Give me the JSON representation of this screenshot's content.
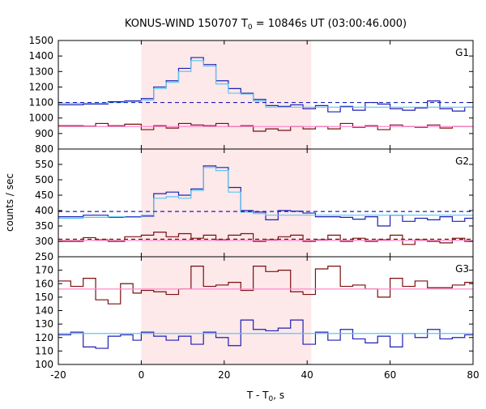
{
  "chart_data": {
    "type": "line",
    "title": "KONUS-WIND 150707 T",
    "title_sub": "0",
    "title_rest": " = 10846s UT (03:00:46.000)",
    "xlabel_main": "T - T",
    "xlabel_sub": "0",
    "xlabel_unit": ", s",
    "ylabel": "counts / sec",
    "xlim": [
      -20,
      80
    ],
    "x_ticks": [
      -20,
      0,
      20,
      40,
      60,
      80
    ],
    "x_tick_labels": [
      "-20",
      "0",
      "20",
      "40",
      "60",
      "80"
    ],
    "highlight_interval": [
      0,
      41
    ],
    "panels": [
      {
        "label": "G1",
        "ylim": [
          800,
          1500
        ],
        "y_ticks": [
          800,
          900,
          1000,
          1100,
          1200,
          1300,
          1400,
          1500
        ],
        "y_tick_labels": [
          "800",
          "900",
          "1000",
          "1100",
          "1200",
          "1300",
          "1400",
          "1500"
        ],
        "series": [
          {
            "color": "#1f1fb4",
            "style": "step",
            "x": [
              -20,
              -14,
              -8,
              -4,
              0,
              3,
              6,
              9,
              12,
              15,
              18,
              21,
              24,
              27,
              30,
              33,
              36,
              39,
              42,
              45,
              48,
              51,
              54,
              57,
              60,
              63,
              66,
              69,
              72,
              75,
              78,
              80
            ],
            "y": [
              1085,
              1090,
              1105,
              1110,
              1125,
              1200,
              1240,
              1320,
              1390,
              1345,
              1240,
              1190,
              1160,
              1120,
              1080,
              1075,
              1085,
              1060,
              1080,
              1040,
              1075,
              1050,
              1100,
              1090,
              1060,
              1050,
              1065,
              1110,
              1060,
              1045,
              1070,
              1070
            ]
          },
          {
            "color": "#5ac8f0",
            "style": "step",
            "x": [
              -20,
              -14,
              -8,
              -4,
              0,
              3,
              6,
              9,
              12,
              15,
              18,
              21,
              24,
              27,
              30,
              80
            ],
            "y": [
              1095,
              1095,
              1100,
              1105,
              1115,
              1190,
              1230,
              1300,
              1370,
              1335,
              1220,
              1160,
              1155,
              1110,
              1070,
              1070
            ]
          },
          {
            "color": "#7a0f0f",
            "style": "step",
            "x": [
              -20,
              -14,
              -11,
              -8,
              -4,
              0,
              3,
              6,
              9,
              12,
              15,
              18,
              21,
              24,
              27,
              30,
              33,
              36,
              39,
              42,
              45,
              48,
              51,
              54,
              57,
              60,
              63,
              66,
              69,
              72,
              75,
              78,
              80
            ],
            "y": [
              950,
              948,
              965,
              950,
              960,
              925,
              950,
              935,
              965,
              955,
              950,
              965,
              945,
              950,
              915,
              930,
              920,
              945,
              930,
              945,
              930,
              965,
              940,
              950,
              925,
              955,
              945,
              940,
              955,
              935,
              945,
              945,
              945
            ]
          },
          {
            "color": "#ff88cc",
            "style": "step",
            "x": [
              -20,
              80
            ],
            "y": [
              945,
              945
            ]
          },
          {
            "color": "#1f1fb4",
            "style": "dashed",
            "x": [
              -20,
              80
            ],
            "y": [
              1100,
              1100
            ]
          }
        ]
      },
      {
        "label": "G2",
        "ylim": [
          250,
          600
        ],
        "y_ticks": [
          250,
          300,
          350,
          400,
          450,
          500,
          550
        ],
        "y_tick_labels": [
          "250",
          "300",
          "350",
          "400",
          "450",
          "500",
          "550"
        ],
        "series": [
          {
            "color": "#1f1fb4",
            "style": "step",
            "x": [
              -20,
              -14,
              -8,
              -4,
              0,
              3,
              6,
              9,
              12,
              15,
              18,
              21,
              24,
              27,
              30,
              33,
              36,
              39,
              42,
              45,
              48,
              51,
              54,
              57,
              60,
              63,
              66,
              69,
              72,
              75,
              78,
              80
            ],
            "y": [
              380,
              385,
              378,
              380,
              382,
              455,
              460,
              450,
              470,
              545,
              540,
              475,
              400,
              395,
              370,
              400,
              398,
              392,
              380,
              380,
              378,
              372,
              380,
              350,
              385,
              365,
              375,
              370,
              380,
              365,
              375,
              375
            ]
          },
          {
            "color": "#5ac8f0",
            "style": "step",
            "x": [
              -20,
              -14,
              -8,
              -4,
              0,
              3,
              6,
              9,
              12,
              15,
              18,
              21,
              24,
              27,
              30,
              80
            ],
            "y": [
              375,
              378,
              380,
              378,
              385,
              440,
              445,
              440,
              465,
              540,
              530,
              460,
              395,
              390,
              385,
              370
            ]
          },
          {
            "color": "#7a0f0f",
            "style": "step",
            "x": [
              -20,
              -14,
              -11,
              -8,
              -4,
              0,
              3,
              6,
              9,
              12,
              15,
              18,
              21,
              24,
              27,
              30,
              33,
              36,
              39,
              42,
              45,
              48,
              51,
              54,
              57,
              60,
              63,
              66,
              69,
              72,
              75,
              78,
              80
            ],
            "y": [
              300,
              312,
              305,
              300,
              315,
              320,
              330,
              315,
              325,
              310,
              320,
              305,
              320,
              325,
              300,
              305,
              315,
              320,
              300,
              305,
              320,
              300,
              310,
              300,
              305,
              320,
              290,
              305,
              300,
              295,
              310,
              300,
              300
            ]
          },
          {
            "color": "#ff88cc",
            "style": "step",
            "x": [
              -20,
              80
            ],
            "y": [
              303,
              303
            ]
          },
          {
            "color": "#1f1fb4",
            "style": "dashed",
            "x": [
              -20,
              80
            ],
            "y": [
              397,
              397
            ]
          },
          {
            "color": "#7a0f0f",
            "style": "dashed",
            "x": [
              -20,
              80
            ],
            "y": [
              307,
              307
            ]
          }
        ]
      },
      {
        "label": "G3",
        "ylim": [
          100,
          180
        ],
        "y_ticks": [
          100,
          110,
          120,
          130,
          140,
          150,
          160,
          170
        ],
        "y_tick_labels": [
          "100",
          "110",
          "120",
          "130",
          "140",
          "150",
          "160",
          "170"
        ],
        "series": [
          {
            "color": "#7a0f0f",
            "style": "step",
            "x": [
              -20,
              -17,
              -14,
              -11,
              -8,
              -5,
              -2,
              0,
              3,
              6,
              9,
              12,
              15,
              18,
              21,
              24,
              27,
              30,
              33,
              36,
              39,
              42,
              45,
              48,
              51,
              54,
              57,
              60,
              63,
              66,
              69,
              72,
              75,
              78,
              80
            ],
            "y": [
              162,
              158,
              164,
              148,
              145,
              160,
              153,
              155,
              154,
              152,
              156,
              173,
              158,
              159,
              161,
              155,
              173,
              169,
              170,
              154,
              152,
              171,
              173,
              158,
              159,
              156,
              150,
              164,
              158,
              162,
              157,
              157,
              159,
              161,
              161
            ]
          },
          {
            "color": "#ff88cc",
            "style": "step",
            "x": [
              -20,
              80
            ],
            "y": [
              156,
              156
            ]
          },
          {
            "color": "#1f1fb4",
            "style": "step",
            "x": [
              -20,
              -17,
              -14,
              -11,
              -8,
              -5,
              -2,
              0,
              3,
              6,
              9,
              12,
              15,
              18,
              21,
              24,
              27,
              30,
              33,
              36,
              39,
              42,
              45,
              48,
              51,
              54,
              57,
              60,
              63,
              66,
              69,
              72,
              75,
              78,
              80
            ],
            "y": [
              122,
              124,
              113,
              112,
              121,
              122,
              118,
              124,
              121,
              118,
              121,
              115,
              124,
              120,
              114,
              133,
              126,
              125,
              127,
              133,
              115,
              124,
              118,
              126,
              119,
              116,
              121,
              113,
              123,
              120,
              126,
              119,
              120,
              122,
              122
            ]
          },
          {
            "color": "#5ac8f0",
            "style": "step",
            "x": [
              -20,
              80
            ],
            "y": [
              123,
              123
            ]
          }
        ]
      }
    ]
  }
}
